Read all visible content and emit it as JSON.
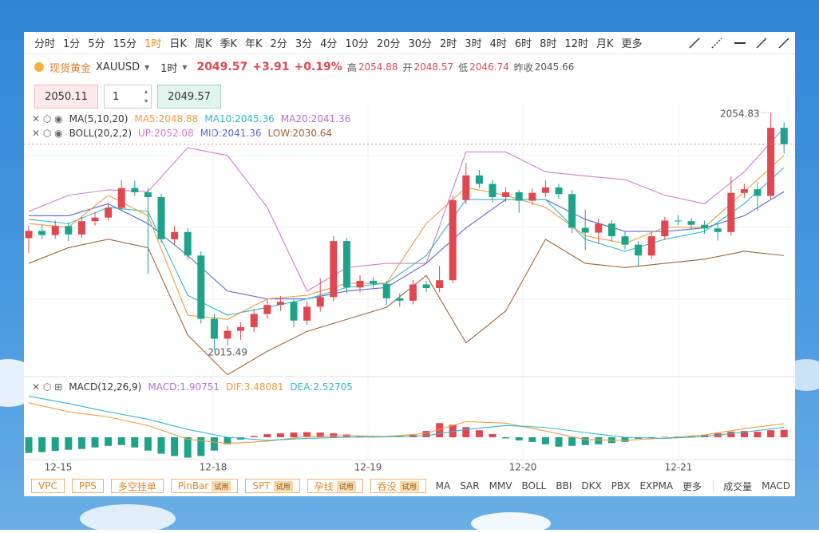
{
  "toolbar": {
    "periods": [
      "分时",
      "1分",
      "5分",
      "15分",
      "1时",
      "日K",
      "周K",
      "季K",
      "年K",
      "2分",
      "3分",
      "4分",
      "10分",
      "20分",
      "30分",
      "2时",
      "3时",
      "4时",
      "6时",
      "8时",
      "12时",
      "月K",
      "更多"
    ],
    "active": 4
  },
  "symbol": {
    "name": "现货黄金",
    "code": "XAUUSD",
    "period": "1时",
    "price": 2049.57,
    "change": "+3.91",
    "change_pct": "+0.19%",
    "high_label": "高",
    "high": 2054.88,
    "open_label": "开",
    "open": 2048.57,
    "low_label": "低",
    "low": 2046.74,
    "prev_label": "昨收",
    "prev_close": 2045.66
  },
  "order": {
    "sell": 2050.11,
    "qty": 1,
    "buy": 2049.57
  },
  "indicators": {
    "ma": {
      "name": "MA(5,10,20)",
      "ma5": "MA5:2048.88",
      "ma10": "MA10:2045.36",
      "ma20": "MA20:2041.36"
    },
    "boll": {
      "name": "BOLL(20,2,2)",
      "up": "UP:2052.08",
      "mid": "MID:2041.36",
      "low": "LOW:2030.64"
    },
    "macd": {
      "name": "MACD(12,26,9)",
      "macd": "MACD:1.90751",
      "dif": "DIF:3.48081",
      "dea": "DEA:2.52705"
    }
  },
  "chart_data": {
    "type": "candlestick",
    "up_color": "#e0474f",
    "down_color": "#1ea38a",
    "ylim": [
      2011,
      2056.3
    ],
    "high_label": 2054.83,
    "low_label": 2015.49,
    "dates": [
      "12-15",
      "12-18",
      "12-19",
      "12-20",
      "12-21"
    ],
    "candles": [
      [
        2034.0,
        2036.0,
        2031.5,
        2035.2
      ],
      [
        2035.2,
        2036.2,
        2033.8,
        2034.5
      ],
      [
        2034.5,
        2036.9,
        2033.9,
        2036.0
      ],
      [
        2036.0,
        2036.6,
        2033.5,
        2034.6
      ],
      [
        2034.6,
        2037.5,
        2034.0,
        2036.8
      ],
      [
        2036.8,
        2038.3,
        2036.1,
        2037.4
      ],
      [
        2037.4,
        2039.8,
        2036.9,
        2039.0
      ],
      [
        2039.0,
        2043.6,
        2038.5,
        2042.3
      ],
      [
        2042.3,
        2043.5,
        2041.0,
        2041.6
      ],
      [
        2041.6,
        2042.3,
        2028.0,
        2040.8
      ],
      [
        2040.8,
        2041.4,
        2033.2,
        2033.8
      ],
      [
        2033.8,
        2036.0,
        2032.9,
        2035.0
      ],
      [
        2035.0,
        2035.6,
        2030.4,
        2031.1
      ],
      [
        2031.1,
        2031.8,
        2019.8,
        2020.6
      ],
      [
        2020.6,
        2021.4,
        2015.49,
        2017.3
      ],
      [
        2017.3,
        2019.4,
        2016.2,
        2018.6
      ],
      [
        2018.6,
        2020.0,
        2017.1,
        2019.2
      ],
      [
        2019.2,
        2022.2,
        2018.4,
        2021.4
      ],
      [
        2021.4,
        2023.8,
        2020.6,
        2022.9
      ],
      [
        2022.9,
        2024.4,
        2021.9,
        2023.4
      ],
      [
        2023.4,
        2024.0,
        2019.2,
        2020.3
      ],
      [
        2020.3,
        2023.5,
        2019.6,
        2022.6
      ],
      [
        2022.6,
        2027.3,
        2021.8,
        2024.2
      ],
      [
        2024.2,
        2034.3,
        2023.5,
        2033.5
      ],
      [
        2033.5,
        2034.0,
        2024.9,
        2025.8
      ],
      [
        2025.8,
        2027.8,
        2025.0,
        2026.9
      ],
      [
        2026.9,
        2027.5,
        2025.6,
        2026.4
      ],
      [
        2026.4,
        2026.9,
        2022.8,
        2024.0
      ],
      [
        2024.0,
        2024.8,
        2022.6,
        2023.6
      ],
      [
        2023.6,
        2027.0,
        2023.0,
        2026.3
      ],
      [
        2026.3,
        2026.9,
        2025.0,
        2025.7
      ],
      [
        2025.7,
        2029.4,
        2025.0,
        2027.0
      ],
      [
        2027.0,
        2041.0,
        2026.5,
        2040.3
      ],
      [
        2040.3,
        2046.5,
        2039.6,
        2044.4
      ],
      [
        2044.4,
        2045.3,
        2042.3,
        2043.0
      ],
      [
        2043.0,
        2043.7,
        2039.9,
        2040.8
      ],
      [
        2040.8,
        2042.4,
        2040.0,
        2041.6
      ],
      [
        2041.6,
        2042.0,
        2038.2,
        2040.2
      ],
      [
        2040.2,
        2042.2,
        2039.5,
        2041.5
      ],
      [
        2041.5,
        2043.6,
        2040.8,
        2042.4
      ],
      [
        2042.4,
        2043.0,
        2040.5,
        2041.3
      ],
      [
        2041.3,
        2042.0,
        2034.8,
        2035.7
      ],
      [
        2035.7,
        2038.7,
        2032.0,
        2034.9
      ],
      [
        2034.9,
        2037.2,
        2033.0,
        2036.4
      ],
      [
        2036.4,
        2037.0,
        2033.4,
        2034.3
      ],
      [
        2034.3,
        2035.0,
        2032.1,
        2032.9
      ],
      [
        2032.9,
        2033.5,
        2029.2,
        2031.1
      ],
      [
        2031.1,
        2034.9,
        2030.5,
        2034.3
      ],
      [
        2034.3,
        2037.5,
        2033.7,
        2036.9
      ],
      [
        2036.9,
        2037.8,
        2036.1,
        2036.8
      ],
      [
        2036.8,
        2037.4,
        2035.4,
        2036.2
      ],
      [
        2036.2,
        2036.9,
        2034.7,
        2035.6
      ],
      [
        2035.6,
        2036.3,
        2033.6,
        2035.0
      ],
      [
        2035.0,
        2044.2,
        2034.4,
        2041.5
      ],
      [
        2041.5,
        2043.0,
        2040.7,
        2042.1
      ],
      [
        2042.1,
        2043.3,
        2038.5,
        2041.0
      ],
      [
        2041.0,
        2054.83,
        2040.4,
        2052.3
      ],
      [
        2052.3,
        2053.2,
        2048.0,
        2049.57
      ]
    ],
    "line_x": [
      0,
      3,
      6,
      9,
      12,
      15,
      18,
      21,
      24,
      27,
      30,
      33,
      36,
      39,
      42,
      45,
      48,
      51,
      54,
      57
    ],
    "lines": [
      {
        "color": "#d77ad3",
        "values": [
          2038.4,
          2041.1,
          2042.0,
          2041.7,
          2049.0,
          2047.7,
          2039.1,
          2025.2,
          2029.1,
          2029.8,
          2029.8,
          2048.3,
          2048.3,
          2045.0,
          2044.3,
          2043.7,
          2041.1,
          2039.7,
          2045.0,
          2052.3
        ]
      },
      {
        "color": "#a0643a",
        "values": [
          2029.8,
          2032.4,
          2033.8,
          2032.4,
          2017.9,
          2011.3,
          2015.2,
          2018.5,
          2020.5,
          2022.5,
          2027.8,
          2016.6,
          2021.9,
          2033.8,
          2029.8,
          2029.1,
          2029.8,
          2030.5,
          2031.8,
          2031.1
        ]
      },
      {
        "color": "#5a67d8",
        "values": [
          2037.7,
          2037.7,
          2039.7,
          2036.4,
          2031.1,
          2025.2,
          2023.9,
          2023.9,
          2025.2,
          2025.8,
          2029.8,
          2035.7,
          2040.4,
          2040.4,
          2037.1,
          2035.1,
          2035.1,
          2035.7,
          2037.7,
          2041.7
        ]
      },
      {
        "color": "#2fb8c8",
        "values": [
          2037.1,
          2036.4,
          2039.1,
          2038.4,
          2024.5,
          2021.2,
          2022.5,
          2023.9,
          2025.8,
          2026.5,
          2031.1,
          2040.4,
          2040.4,
          2040.4,
          2033.8,
          2031.8,
          2033.8,
          2035.1,
          2039.7,
          2045.7
        ]
      },
      {
        "color": "#f39a45",
        "values": [
          2036.4,
          2035.8,
          2041.1,
          2037.7,
          2021.2,
          2020.5,
          2023.9,
          2024.5,
          2026.5,
          2026.5,
          2036.4,
          2042.4,
          2041.1,
          2039.1,
          2034.4,
          2033.1,
          2035.8,
          2035.8,
          2041.7,
          2047.7
        ]
      }
    ],
    "macd": {
      "ylim": [
        -5.5,
        10.8
      ],
      "histogram": [
        -4.0,
        -3.8,
        -3.5,
        -3.2,
        -3.0,
        -2.6,
        -2.2,
        -2.0,
        -2.6,
        -3.4,
        -4.2,
        -4.8,
        -5.2,
        -4.8,
        -3.4,
        -1.8,
        -0.6,
        0.3,
        0.8,
        1.0,
        1.2,
        1.3,
        1.2,
        1.0,
        0.7,
        0.3,
        0.2,
        0.2,
        0.3,
        0.6,
        1.6,
        3.6,
        3.2,
        2.6,
        1.8,
        0.8,
        -0.3,
        -0.8,
        -1.2,
        -1.8,
        -2.4,
        -2.2,
        -2.0,
        -1.8,
        -1.5,
        -1.2,
        -0.4,
        -0.1,
        0.1,
        0.2,
        0.3,
        0.6,
        1.0,
        1.4,
        1.6,
        1.4,
        1.8,
        1.9
      ],
      "lines": [
        {
          "color": "#f39a45",
          "values": [
            8.8,
            6.5,
            5.2,
            3.0,
            -0.5,
            -1.6,
            -1.0,
            0.2,
            0.4,
            0.2,
            1.0,
            4.0,
            3.6,
            1.6,
            -0.6,
            -0.8,
            -0.2,
            0.6,
            2.2,
            3.48
          ]
        },
        {
          "color": "#2fb8c8",
          "values": [
            10.5,
            8.6,
            6.5,
            4.6,
            2.0,
            0.0,
            -0.8,
            -0.3,
            0.0,
            0.1,
            0.4,
            2.0,
            3.0,
            2.5,
            1.2,
            0.0,
            -0.3,
            0.2,
            1.3,
            2.53
          ]
        }
      ]
    }
  },
  "bottom_bar": {
    "tools": [
      {
        "name": "VPC"
      },
      {
        "name": "PPS"
      },
      {
        "name": "多空挂单"
      },
      {
        "name": "PinBar",
        "badge": "试用"
      },
      {
        "name": "SPT",
        "badge": "试用"
      },
      {
        "name": "孕线",
        "badge": "试用"
      },
      {
        "name": "吞没",
        "badge": "试用"
      }
    ],
    "main_indicators": [
      "MA",
      "SAR",
      "MMV",
      "BOLL",
      "BBI",
      "DKX",
      "PBX",
      "EXPMA",
      "更多"
    ],
    "sub_indicators": [
      "成交量",
      "MACD"
    ]
  }
}
